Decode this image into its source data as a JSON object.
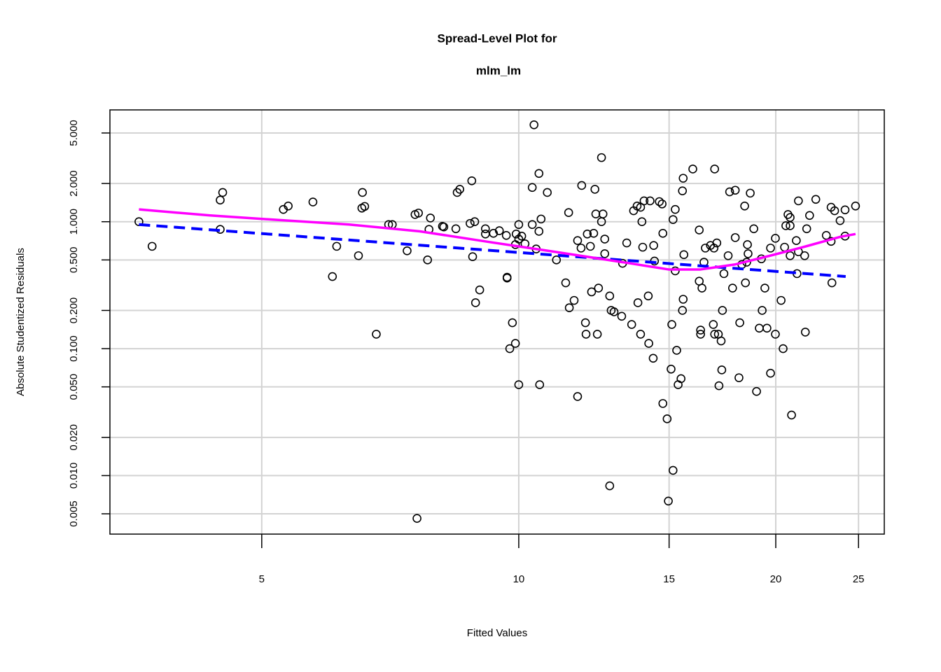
{
  "chart_data": {
    "type": "scatter",
    "title": "Spread-Level Plot for",
    "subtitle": "mlm_lm",
    "x_label": "Fitted Values",
    "y_label": "Absolute Studentized Residuals",
    "xlog": true,
    "ylog": true,
    "grid": true,
    "xlim": [
      3.32,
      26.8
    ],
    "ylim": [
      0.00346,
      7.6
    ],
    "xticks": [
      5,
      10,
      15,
      20,
      25
    ],
    "yticks": [
      {
        "value": 0.005,
        "label": "0.005"
      },
      {
        "value": 0.01,
        "label": "0.010"
      },
      {
        "value": 0.02,
        "label": "0.020"
      },
      {
        "value": 0.05,
        "label": "0.050"
      },
      {
        "value": 0.1,
        "label": "0.100"
      },
      {
        "value": 0.2,
        "label": "0.200"
      },
      {
        "value": 0.5,
        "label": "0.500"
      },
      {
        "value": 1,
        "label": "1.000"
      },
      {
        "value": 2,
        "label": "2.000"
      },
      {
        "value": 5,
        "label": "5.000"
      }
    ],
    "point_color": "#000000",
    "x": [
      3.59,
      3.72,
      4.47,
      4.5,
      4.47,
      5.3,
      5.37,
      5.74,
      6.05,
      6.12,
      6.49,
      6.55,
      6.6,
      6.56,
      6.81,
      7.04,
      7.11,
      7.4,
      7.56,
      7.63,
      7.6,
      7.82,
      7.85,
      7.88,
      8.14,
      8.17,
      8.44,
      8.47,
      8.53,
      8.77,
      8.81,
      8.83,
      8.88,
      8.9,
      9.0,
      9.14,
      9.14,
      9.34,
      9.49,
      9.67,
      9.69,
      9.69,
      9.76,
      9.83,
      9.91,
      9.93,
      9.91,
      10.0,
      10.0,
      10.0,
      10.08,
      10.17,
      10.37,
      10.37,
      10.42,
      10.48,
      10.56,
      10.56,
      10.58,
      10.62,
      10.8,
      11.07,
      11.35,
      11.44,
      11.46,
      11.61,
      11.72,
      11.72,
      11.83,
      11.85,
      11.97,
      11.99,
      12.03,
      12.13,
      12.17,
      12.24,
      12.28,
      12.31,
      12.36,
      12.4,
      12.5,
      12.5,
      12.55,
      12.61,
      12.61,
      12.78,
      12.78,
      12.83,
      12.93,
      13.2,
      13.23,
      13.38,
      13.56,
      13.63,
      13.76,
      13.79,
      13.89,
      13.89,
      13.94,
      13.97,
      14.02,
      14.18,
      14.2,
      14.25,
      14.37,
      14.39,
      14.42,
      14.61,
      14.72,
      14.75,
      14.75,
      14.92,
      14.97,
      15.08,
      15.11,
      15.16,
      15.16,
      15.25,
      15.25,
      15.31,
      15.37,
      15.49,
      15.55,
      15.58,
      15.58,
      15.55,
      15.61,
      15.99,
      16.27,
      16.27,
      16.33,
      16.33,
      16.39,
      16.48,
      16.54,
      16.77,
      16.9,
      16.93,
      16.96,
      16.96,
      17.06,
      17.13,
      17.16,
      17.26,
      17.29,
      17.32,
      17.39,
      17.59,
      17.66,
      17.8,
      17.93,
      17.93,
      18.11,
      18.15,
      18.25,
      18.39,
      18.43,
      18.49,
      18.53,
      18.56,
      18.67,
      18.85,
      18.99,
      19.13,
      19.24,
      19.28,
      19.42,
      19.53,
      19.72,
      19.72,
      19.98,
      19.98,
      20.29,
      20.4,
      20.48,
      20.55,
      20.67,
      20.79,
      20.79,
      20.79,
      20.87,
      21.14,
      21.18,
      21.26,
      21.26,
      21.62,
      21.66,
      21.74,
      21.91,
      22.28,
      22.92,
      23.22,
      23.22,
      23.27,
      23.44,
      23.79,
      24.11,
      24.11,
      24.8
    ],
    "values": [
      1.0,
      0.64,
      1.48,
      1.7,
      0.87,
      1.25,
      1.33,
      1.43,
      0.37,
      0.64,
      0.54,
      1.28,
      1.32,
      1.7,
      0.13,
      0.95,
      0.95,
      0.59,
      1.14,
      1.17,
      0.0046,
      0.5,
      0.87,
      1.07,
      0.92,
      0.91,
      0.88,
      1.7,
      1.8,
      0.97,
      2.1,
      0.53,
      1.0,
      0.23,
      0.29,
      0.88,
      0.8,
      0.81,
      0.85,
      0.78,
      0.36,
      0.365,
      0.1,
      0.16,
      0.11,
      0.8,
      0.66,
      0.73,
      0.052,
      0.95,
      0.77,
      0.67,
      1.86,
      0.95,
      5.8,
      0.61,
      2.4,
      0.84,
      0.052,
      1.05,
      1.7,
      0.5,
      0.33,
      1.18,
      0.21,
      0.24,
      0.71,
      0.042,
      0.62,
      1.93,
      0.16,
      0.13,
      0.8,
      0.64,
      0.28,
      0.81,
      1.8,
      1.15,
      0.13,
      0.3,
      3.2,
      1.0,
      1.15,
      0.56,
      0.73,
      0.0083,
      0.26,
      0.2,
      0.195,
      0.18,
      0.47,
      0.68,
      0.155,
      1.22,
      1.33,
      0.23,
      0.13,
      1.3,
      1.0,
      0.63,
      1.46,
      0.26,
      0.11,
      1.46,
      0.084,
      0.65,
      0.49,
      1.44,
      1.38,
      0.81,
      0.037,
      0.028,
      0.0063,
      0.069,
      0.155,
      1.04,
      0.011,
      0.41,
      1.25,
      0.097,
      0.052,
      0.058,
      1.75,
      2.2,
      0.245,
      0.2,
      0.55,
      2.6,
      0.86,
      0.34,
      0.14,
      0.13,
      0.3,
      0.48,
      0.62,
      0.65,
      0.155,
      0.62,
      2.6,
      0.13,
      0.68,
      0.13,
      0.051,
      0.115,
      0.068,
      0.2,
      0.39,
      0.54,
      1.72,
      0.3,
      0.75,
      1.77,
      0.059,
      0.16,
      0.46,
      1.33,
      0.33,
      0.48,
      0.66,
      0.56,
      1.68,
      0.88,
      0.046,
      0.145,
      0.51,
      0.2,
      0.3,
      0.145,
      0.064,
      0.62,
      0.74,
      0.13,
      0.24,
      0.1,
      0.63,
      0.93,
      1.14,
      0.93,
      1.08,
      0.54,
      0.03,
      0.71,
      0.39,
      0.58,
      1.46,
      0.54,
      0.135,
      0.88,
      1.12,
      1.5,
      0.78,
      1.3,
      0.7,
      0.33,
      1.22,
      1.02,
      0.77,
      1.24,
      1.33
    ],
    "series": [
      {
        "color": "#0000ff",
        "dashed": true,
        "x": [
          3.59,
          24.15
        ],
        "values": [
          0.95,
          0.37
        ]
      },
      {
        "color": "#ff00ff",
        "dashed": false,
        "x": [
          3.59,
          4.35,
          5.25,
          6.33,
          7.66,
          9.26,
          11.2,
          13.5,
          15,
          16.3,
          17.9,
          19.7,
          21.7,
          23.8,
          24.8
        ],
        "values": [
          1.25,
          1.12,
          1.03,
          0.95,
          0.84,
          0.69,
          0.57,
          0.47,
          0.42,
          0.42,
          0.46,
          0.54,
          0.64,
          0.76,
          0.8
        ]
      }
    ]
  }
}
